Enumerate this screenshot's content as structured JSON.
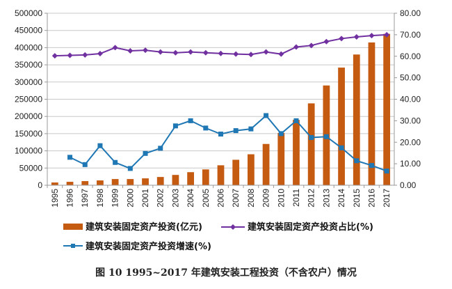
{
  "chart_data": {
    "type": "bar+line",
    "title": "",
    "caption": "图 10   1995~2017 年建筑安装工程投资（不含农户）情况",
    "categories": [
      "1995",
      "1996",
      "1997",
      "1998",
      "1999",
      "2000",
      "2001",
      "2002",
      "2003",
      "2004",
      "2005",
      "2006",
      "2007",
      "2008",
      "2009",
      "2010",
      "2011",
      "2012",
      "2013",
      "2014",
      "2015",
      "2016",
      "2017"
    ],
    "left_axis": {
      "range": [
        0,
        500000
      ],
      "ticks": [
        "0",
        "50000",
        "100000",
        "150000",
        "200000",
        "250000",
        "300000",
        "350000",
        "400000",
        "450000",
        "500000"
      ]
    },
    "right_axis": {
      "range": [
        0,
        80
      ],
      "ticks": [
        "0.00",
        "10.00",
        "20.00",
        "30.00",
        "40.00",
        "50.00",
        "60.00",
        "70.00",
        "80.00"
      ]
    },
    "grid": true,
    "legend_position": "bottom",
    "series": [
      {
        "name": "建筑安装固定资产投资(亿元)",
        "type": "bar",
        "axis": "left",
        "color": "#c55a11",
        "values": [
          8000,
          10000,
          12000,
          14000,
          18000,
          18000,
          20000,
          24000,
          30000,
          38000,
          46000,
          58000,
          74000,
          90000,
          120000,
          152000,
          190000,
          238000,
          290000,
          342000,
          380000,
          415000,
          440000
        ]
      },
      {
        "name": "建筑安装固定资产投资占比(%)",
        "type": "line",
        "axis": "right",
        "color": "#7030a0",
        "marker": "diamond",
        "values": [
          60.2,
          60.4,
          60.6,
          61.2,
          64.0,
          62.5,
          62.8,
          62.0,
          61.6,
          62.0,
          61.6,
          61.3,
          61.0,
          60.8,
          62.0,
          61.0,
          64.3,
          65.0,
          66.8,
          68.2,
          69.0,
          69.6,
          70.0
        ]
      },
      {
        "name": "建筑安装固定资产投资增速(%)",
        "type": "line",
        "axis": "right",
        "color": "#1f77b4",
        "marker": "square",
        "values": [
          null,
          13.0,
          9.6,
          18.4,
          10.6,
          7.8,
          14.8,
          17.2,
          27.6,
          30.0,
          26.6,
          23.8,
          25.4,
          26.2,
          32.4,
          24.0,
          30.0,
          22.2,
          22.6,
          17.4,
          11.4,
          9.2,
          6.6
        ]
      }
    ]
  }
}
